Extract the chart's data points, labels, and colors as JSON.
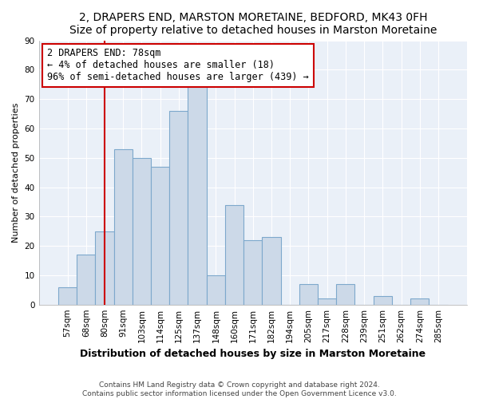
{
  "title": "2, DRAPERS END, MARSTON MORETAINE, BEDFORD, MK43 0FH",
  "subtitle": "Size of property relative to detached houses in Marston Moretaine",
  "xlabel": "Distribution of detached houses by size in Marston Moretaine",
  "ylabel": "Number of detached properties",
  "bar_labels": [
    "57sqm",
    "68sqm",
    "80sqm",
    "91sqm",
    "103sqm",
    "114sqm",
    "125sqm",
    "137sqm",
    "148sqm",
    "160sqm",
    "171sqm",
    "182sqm",
    "194sqm",
    "205sqm",
    "217sqm",
    "228sqm",
    "239sqm",
    "251sqm",
    "262sqm",
    "274sqm",
    "285sqm"
  ],
  "bar_values": [
    6,
    17,
    25,
    53,
    50,
    47,
    66,
    75,
    10,
    34,
    22,
    23,
    0,
    7,
    2,
    7,
    0,
    3,
    0,
    2,
    0
  ],
  "bar_color": "#ccd9e8",
  "bar_edge_color": "#7da8cc",
  "highlight_x_label": "80sqm",
  "highlight_line_color": "#cc0000",
  "annotation_line1": "2 DRAPERS END: 78sqm",
  "annotation_line2": "← 4% of detached houses are smaller (18)",
  "annotation_line3": "96% of semi-detached houses are larger (439) →",
  "annotation_box_edge_color": "#cc0000",
  "annotation_box_face_color": "#ffffff",
  "ylim": [
    0,
    90
  ],
  "yticks": [
    0,
    10,
    20,
    30,
    40,
    50,
    60,
    70,
    80,
    90
  ],
  "footer_line1": "Contains HM Land Registry data © Crown copyright and database right 2024.",
  "footer_line2": "Contains public sector information licensed under the Open Government Licence v3.0.",
  "title_fontsize": 10,
  "subtitle_fontsize": 9,
  "xlabel_fontsize": 9,
  "ylabel_fontsize": 8,
  "tick_fontsize": 7.5,
  "footer_fontsize": 6.5,
  "annotation_fontsize": 8.5,
  "background_color": "#ffffff",
  "plot_bg_color": "#eaf0f8"
}
